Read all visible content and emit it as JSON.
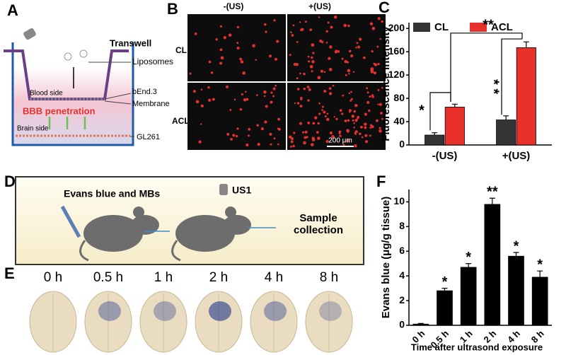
{
  "panels": {
    "a": "A",
    "b": "B",
    "c": "C",
    "d": "D",
    "e": "E",
    "f": "F"
  },
  "transwell": {
    "title": "Transwell",
    "liposomes": "Liposomes",
    "bend3": "bEnd.3",
    "blood_side": "Blood side",
    "membrane": "Membrane",
    "bbb": "BBB penetration",
    "brain_side": "Brain side",
    "gl261": "GL261"
  },
  "microscopy": {
    "columns": [
      "-(US)",
      "+(US)"
    ],
    "rows": [
      "CL",
      "ACL"
    ],
    "scale_bar": "200 μm"
  },
  "protocol": {
    "step1": "Evans blue and MBs",
    "device": "US1",
    "step2": "Sample collection"
  },
  "brains": {
    "times": [
      "0 h",
      "0.5 h",
      "1 h",
      "2 h",
      "4 h",
      "8 h"
    ]
  },
  "chart_data": [
    {
      "type": "bar",
      "ylabel": "Fluorescence intensity",
      "categories": [
        "-(US)",
        "+(US)"
      ],
      "series": [
        {
          "name": "CL",
          "color": "#333333",
          "values": [
            17,
            43
          ],
          "errors": [
            4,
            7
          ]
        },
        {
          "name": "ACL",
          "color": "#e8312a",
          "values": [
            65,
            167
          ],
          "errors": [
            5,
            10
          ]
        }
      ],
      "ylim": [
        0,
        210
      ],
      "yticks": [
        0,
        40,
        80,
        120,
        160,
        200
      ],
      "legend": "upper left",
      "annotations": [
        "*",
        "**",
        "* *"
      ]
    },
    {
      "type": "bar",
      "ylabel": "Evans blue (μg/g tissue)",
      "xlabel": "Time after ultrasond exposure",
      "categories": [
        "0 h",
        "0.5 h",
        "1 h",
        "2 h",
        "4 h",
        "8 h"
      ],
      "color": "#000000",
      "values": [
        0.1,
        2.8,
        4.7,
        9.8,
        5.6,
        3.9
      ],
      "errors": [
        0.05,
        0.2,
        0.3,
        0.5,
        0.3,
        0.5
      ],
      "ylim": [
        0,
        11
      ],
      "yticks": [
        0,
        2,
        4,
        6,
        8,
        10
      ],
      "annotations": [
        null,
        "*",
        "*",
        "**",
        "*",
        "*"
      ]
    }
  ]
}
